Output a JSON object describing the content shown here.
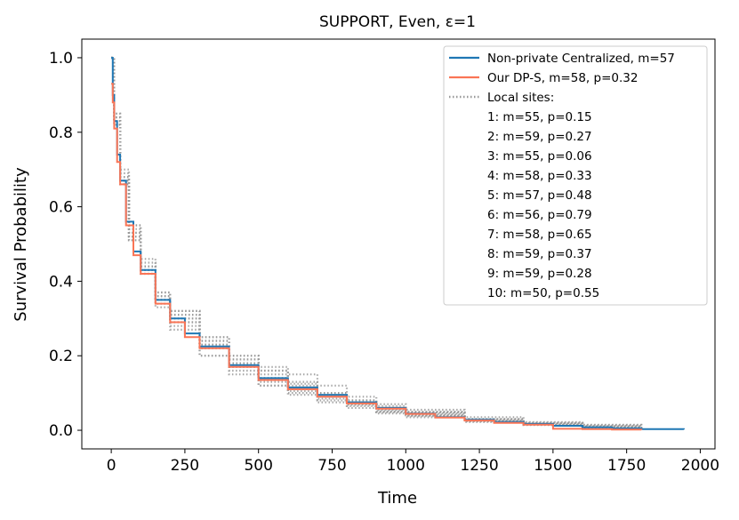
{
  "chart_data": {
    "type": "line",
    "title": "SUPPORT, Even, ε=1",
    "xlabel": "Time",
    "ylabel": "Survival Probability",
    "xlim": [
      -100,
      2050
    ],
    "ylim": [
      -0.05,
      1.05
    ],
    "xticks": [
      0,
      250,
      500,
      750,
      1000,
      1250,
      1500,
      1750,
      2000
    ],
    "yticks": [
      0.0,
      0.2,
      0.4,
      0.6,
      0.8,
      1.0
    ],
    "xtick_labels": [
      "0",
      "250",
      "500",
      "750",
      "1000",
      "1250",
      "1500",
      "1750",
      "2000"
    ],
    "ytick_labels": [
      "0.0",
      "0.2",
      "0.4",
      "0.6",
      "0.8",
      "1.0"
    ],
    "grid": false,
    "legend_position": "top-right",
    "series": [
      {
        "name": "Non-private Centralized, m=57",
        "color": "#1f77b4",
        "style": "solid",
        "x": [
          0,
          5,
          10,
          20,
          30,
          50,
          75,
          100,
          150,
          200,
          250,
          300,
          400,
          500,
          600,
          700,
          800,
          900,
          1000,
          1100,
          1200,
          1300,
          1400,
          1500,
          1600,
          1700,
          1800,
          1944
        ],
        "y": [
          1.0,
          0.9,
          0.83,
          0.74,
          0.67,
          0.56,
          0.48,
          0.43,
          0.35,
          0.3,
          0.26,
          0.225,
          0.175,
          0.14,
          0.115,
          0.095,
          0.075,
          0.06,
          0.045,
          0.035,
          0.028,
          0.022,
          0.017,
          0.012,
          0.008,
          0.005,
          0.003,
          0.002
        ]
      },
      {
        "name": "Our DP-S, m=58, p=0.32",
        "color": "#fa7556",
        "style": "solid",
        "x": [
          0,
          5,
          10,
          20,
          30,
          50,
          75,
          100,
          150,
          200,
          250,
          300,
          400,
          500,
          600,
          700,
          800,
          900,
          1000,
          1100,
          1200,
          1300,
          1400,
          1500,
          1600,
          1700,
          1800
        ],
        "y": [
          0.93,
          0.88,
          0.81,
          0.72,
          0.66,
          0.55,
          0.47,
          0.42,
          0.34,
          0.29,
          0.25,
          0.22,
          0.17,
          0.135,
          0.11,
          0.09,
          0.072,
          0.058,
          0.044,
          0.034,
          0.026,
          0.02,
          0.015,
          0.004,
          0.003,
          0.002,
          0.001
        ]
      }
    ],
    "local_sites_label": "Local sites:",
    "local_sites_color": "#999999",
    "local_sites": [
      {
        "label": "1: m=55, p=0.15",
        "x": [
          0,
          10,
          30,
          60,
          100,
          150,
          200,
          300,
          400,
          500,
          600,
          700,
          800,
          900,
          1000,
          1200,
          1400,
          1600,
          1800
        ],
        "y": [
          1.0,
          0.84,
          0.68,
          0.53,
          0.44,
          0.36,
          0.31,
          0.24,
          0.19,
          0.15,
          0.12,
          0.1,
          0.08,
          0.065,
          0.05,
          0.03,
          0.018,
          0.01,
          0.004
        ]
      },
      {
        "label": "2: m=59, p=0.27",
        "x": [
          0,
          10,
          30,
          60,
          100,
          150,
          200,
          300,
          400,
          500,
          600,
          700,
          800,
          900,
          1000,
          1200,
          1400,
          1600,
          1800
        ],
        "y": [
          1.0,
          0.82,
          0.66,
          0.52,
          0.42,
          0.34,
          0.28,
          0.2,
          0.16,
          0.12,
          0.1,
          0.08,
          0.065,
          0.045,
          0.035,
          0.022,
          0.014,
          0.007,
          0.003
        ]
      },
      {
        "label": "3: m=55, p=0.06",
        "x": [
          0,
          10,
          30,
          60,
          100,
          150,
          200,
          300,
          400,
          500,
          600,
          700,
          800,
          900,
          1000,
          1200,
          1400,
          1600,
          1800
        ],
        "y": [
          1.0,
          0.83,
          0.67,
          0.51,
          0.43,
          0.35,
          0.29,
          0.23,
          0.18,
          0.14,
          0.11,
          0.09,
          0.07,
          0.05,
          0.04,
          0.025,
          0.015,
          0.008,
          0.004
        ]
      },
      {
        "label": "4: m=58, p=0.33",
        "x": [
          0,
          10,
          30,
          60,
          100,
          150,
          200,
          300,
          400,
          500,
          600,
          700,
          800,
          900,
          1000,
          1200,
          1400,
          1600,
          1800
        ],
        "y": [
          1.0,
          0.85,
          0.69,
          0.55,
          0.45,
          0.37,
          0.32,
          0.25,
          0.2,
          0.17,
          0.15,
          0.12,
          0.09,
          0.07,
          0.055,
          0.035,
          0.022,
          0.014,
          0.006
        ]
      },
      {
        "label": "5: m=57, p=0.48",
        "x": [
          0,
          10,
          30,
          60,
          100,
          150,
          200,
          300,
          400,
          500,
          600,
          700,
          800,
          900,
          1000,
          1200,
          1400,
          1600,
          1800
        ],
        "y": [
          1.0,
          0.83,
          0.67,
          0.52,
          0.43,
          0.35,
          0.3,
          0.22,
          0.17,
          0.13,
          0.11,
          0.09,
          0.075,
          0.058,
          0.045,
          0.03,
          0.02,
          0.012,
          0.005
        ]
      },
      {
        "label": "6: m=56, p=0.79",
        "x": [
          0,
          10,
          30,
          60,
          100,
          150,
          200,
          300,
          400,
          500,
          600,
          700,
          800,
          900,
          1000,
          1200,
          1400,
          1600,
          1800
        ],
        "y": [
          1.0,
          0.84,
          0.68,
          0.54,
          0.44,
          0.36,
          0.31,
          0.24,
          0.19,
          0.16,
          0.13,
          0.1,
          0.08,
          0.06,
          0.048,
          0.03,
          0.02,
          0.01,
          0.005
        ]
      },
      {
        "label": "7: m=58, p=0.65",
        "x": [
          0,
          10,
          30,
          60,
          100,
          150,
          200,
          300,
          400,
          500,
          600,
          700,
          800,
          900,
          1000,
          1200,
          1400,
          1600,
          1800
        ],
        "y": [
          1.0,
          0.82,
          0.66,
          0.51,
          0.42,
          0.33,
          0.27,
          0.2,
          0.15,
          0.12,
          0.095,
          0.075,
          0.06,
          0.048,
          0.038,
          0.024,
          0.015,
          0.009,
          0.004
        ]
      },
      {
        "label": "8: m=59, p=0.37",
        "x": [
          0,
          10,
          30,
          60,
          100,
          150,
          200,
          300,
          400,
          500,
          600,
          700,
          800,
          900,
          1000,
          1200,
          1400,
          1600,
          1800
        ],
        "y": [
          1.0,
          0.84,
          0.68,
          0.53,
          0.44,
          0.36,
          0.3,
          0.23,
          0.18,
          0.14,
          0.115,
          0.095,
          0.075,
          0.055,
          0.042,
          0.028,
          0.018,
          0.01,
          0.004
        ]
      },
      {
        "label": "9: m=59, p=0.28",
        "x": [
          0,
          10,
          30,
          60,
          100,
          150,
          200,
          300,
          400,
          500,
          600,
          700,
          800,
          900,
          1000,
          1200,
          1400,
          1600,
          1800
        ],
        "y": [
          1.0,
          0.83,
          0.67,
          0.52,
          0.43,
          0.35,
          0.29,
          0.22,
          0.17,
          0.135,
          0.105,
          0.085,
          0.068,
          0.052,
          0.04,
          0.026,
          0.016,
          0.009,
          0.004
        ]
      },
      {
        "label": "10: m=50, p=0.55",
        "x": [
          0,
          10,
          30,
          60,
          100,
          150,
          200,
          300,
          400,
          500,
          600,
          700,
          800,
          900,
          1000,
          1200,
          1400,
          1600,
          1800
        ],
        "y": [
          1.0,
          0.85,
          0.7,
          0.55,
          0.46,
          0.37,
          0.32,
          0.25,
          0.2,
          0.16,
          0.125,
          0.1,
          0.08,
          0.06,
          0.048,
          0.03,
          0.02,
          0.015,
          0.008
        ]
      }
    ]
  }
}
